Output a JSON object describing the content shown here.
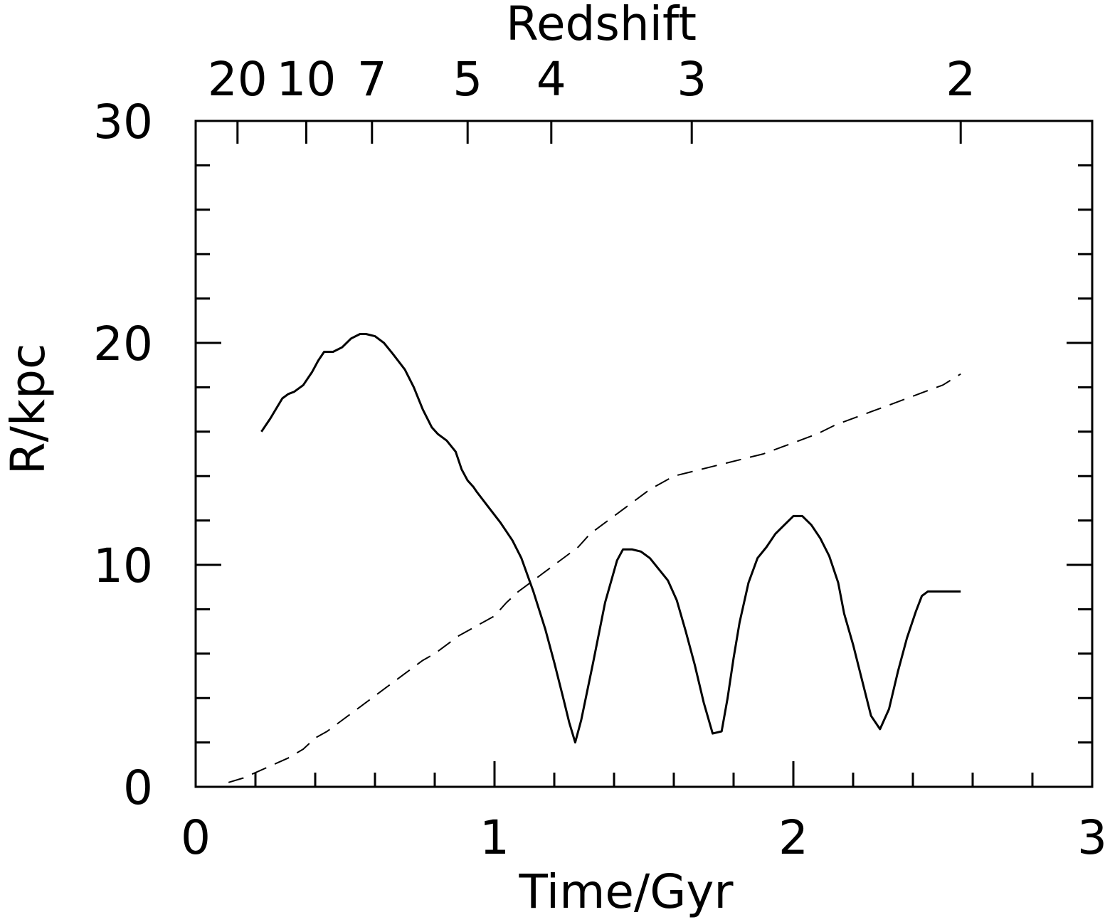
{
  "chart_data": {
    "type": "line",
    "xlabel": "Time/Gyr",
    "ylabel": "R/kpc",
    "top_axis_label": "Redshift",
    "xlim": [
      0,
      3
    ],
    "ylim": [
      0,
      30
    ],
    "x_ticks": [
      {
        "value": 0,
        "label": "0"
      },
      {
        "value": 1,
        "label": "1"
      },
      {
        "value": 2,
        "label": "2"
      },
      {
        "value": 3,
        "label": "3"
      }
    ],
    "y_ticks": [
      {
        "value": 0,
        "label": "0"
      },
      {
        "value": 10,
        "label": "10"
      },
      {
        "value": 20,
        "label": "20"
      },
      {
        "value": 30,
        "label": "30"
      }
    ],
    "top_ticks": [
      {
        "time": 0.14,
        "label": "20"
      },
      {
        "time": 0.37,
        "label": "10"
      },
      {
        "time": 0.59,
        "label": "7"
      },
      {
        "time": 0.91,
        "label": "5"
      },
      {
        "time": 1.19,
        "label": "4"
      },
      {
        "time": 1.66,
        "label": "3"
      },
      {
        "time": 2.56,
        "label": "2"
      }
    ],
    "grid": false,
    "series": [
      {
        "style": "solid",
        "x": [
          0.22,
          0.25,
          0.29,
          0.31,
          0.33,
          0.36,
          0.39,
          0.41,
          0.43,
          0.46,
          0.49,
          0.52,
          0.55,
          0.57,
          0.6,
          0.63,
          0.66,
          0.7,
          0.73,
          0.76,
          0.79,
          0.81,
          0.84,
          0.87,
          0.89,
          0.91,
          0.93,
          0.94,
          0.98,
          1.02,
          1.06,
          1.09,
          1.13,
          1.17,
          1.2,
          1.23,
          1.25,
          1.27,
          1.29,
          1.33,
          1.37,
          1.41,
          1.43,
          1.46,
          1.49,
          1.52,
          1.55,
          1.58,
          1.61,
          1.64,
          1.67,
          1.7,
          1.73,
          1.76,
          1.78,
          1.8,
          1.82,
          1.85,
          1.88,
          1.91,
          1.94,
          1.97,
          2.0,
          2.03,
          2.06,
          2.09,
          2.12,
          2.15,
          2.17,
          2.2,
          2.23,
          2.26,
          2.29,
          2.32,
          2.35,
          2.38,
          2.41,
          2.43,
          2.45,
          2.48,
          2.51,
          2.54,
          2.56
        ],
        "y": [
          16.0,
          16.6,
          17.5,
          17.7,
          17.8,
          18.1,
          18.7,
          19.2,
          19.6,
          19.6,
          19.8,
          20.2,
          20.4,
          20.4,
          20.3,
          20.0,
          19.5,
          18.8,
          18.0,
          17.0,
          16.2,
          15.9,
          15.6,
          15.1,
          14.3,
          13.8,
          13.5,
          13.3,
          12.6,
          11.9,
          11.1,
          10.3,
          8.8,
          7.1,
          5.6,
          4.0,
          2.9,
          2.0,
          3.0,
          5.6,
          8.3,
          10.2,
          10.7,
          10.7,
          10.6,
          10.3,
          9.8,
          9.3,
          8.4,
          7.0,
          5.5,
          3.8,
          2.4,
          2.5,
          4.0,
          5.8,
          7.4,
          9.2,
          10.3,
          10.8,
          11.4,
          11.8,
          12.2,
          12.2,
          11.8,
          11.2,
          10.4,
          9.2,
          7.8,
          6.4,
          4.8,
          3.2,
          2.6,
          3.5,
          5.2,
          6.7,
          7.9,
          8.6,
          8.8,
          8.8,
          8.8,
          8.8,
          8.8
        ]
      },
      {
        "style": "dashed",
        "x": [
          0.11,
          0.16,
          0.21,
          0.26,
          0.31,
          0.36,
          0.4,
          0.44,
          0.48,
          0.52,
          0.56,
          0.6,
          0.64,
          0.68,
          0.72,
          0.76,
          0.8,
          0.84,
          0.88,
          0.92,
          0.96,
          1.0,
          1.04,
          1.08,
          1.12,
          1.16,
          1.2,
          1.24,
          1.28,
          1.32,
          1.36,
          1.4,
          1.44,
          1.48,
          1.52,
          1.56,
          1.6,
          1.66,
          1.72,
          1.78,
          1.84,
          1.9,
          1.96,
          2.02,
          2.08,
          2.14,
          2.2,
          2.26,
          2.32,
          2.38,
          2.44,
          2.5,
          2.56
        ],
        "y": [
          0.2,
          0.4,
          0.7,
          1.0,
          1.3,
          1.7,
          2.2,
          2.5,
          2.9,
          3.3,
          3.7,
          4.1,
          4.5,
          4.9,
          5.3,
          5.7,
          6.0,
          6.4,
          6.8,
          7.1,
          7.4,
          7.7,
          8.3,
          8.8,
          9.2,
          9.6,
          10.0,
          10.4,
          10.8,
          11.4,
          11.8,
          12.2,
          12.6,
          13.0,
          13.4,
          13.7,
          14.0,
          14.2,
          14.4,
          14.6,
          14.8,
          15.0,
          15.3,
          15.6,
          15.9,
          16.3,
          16.6,
          16.9,
          17.2,
          17.5,
          17.8,
          18.1,
          18.6
        ]
      }
    ]
  }
}
